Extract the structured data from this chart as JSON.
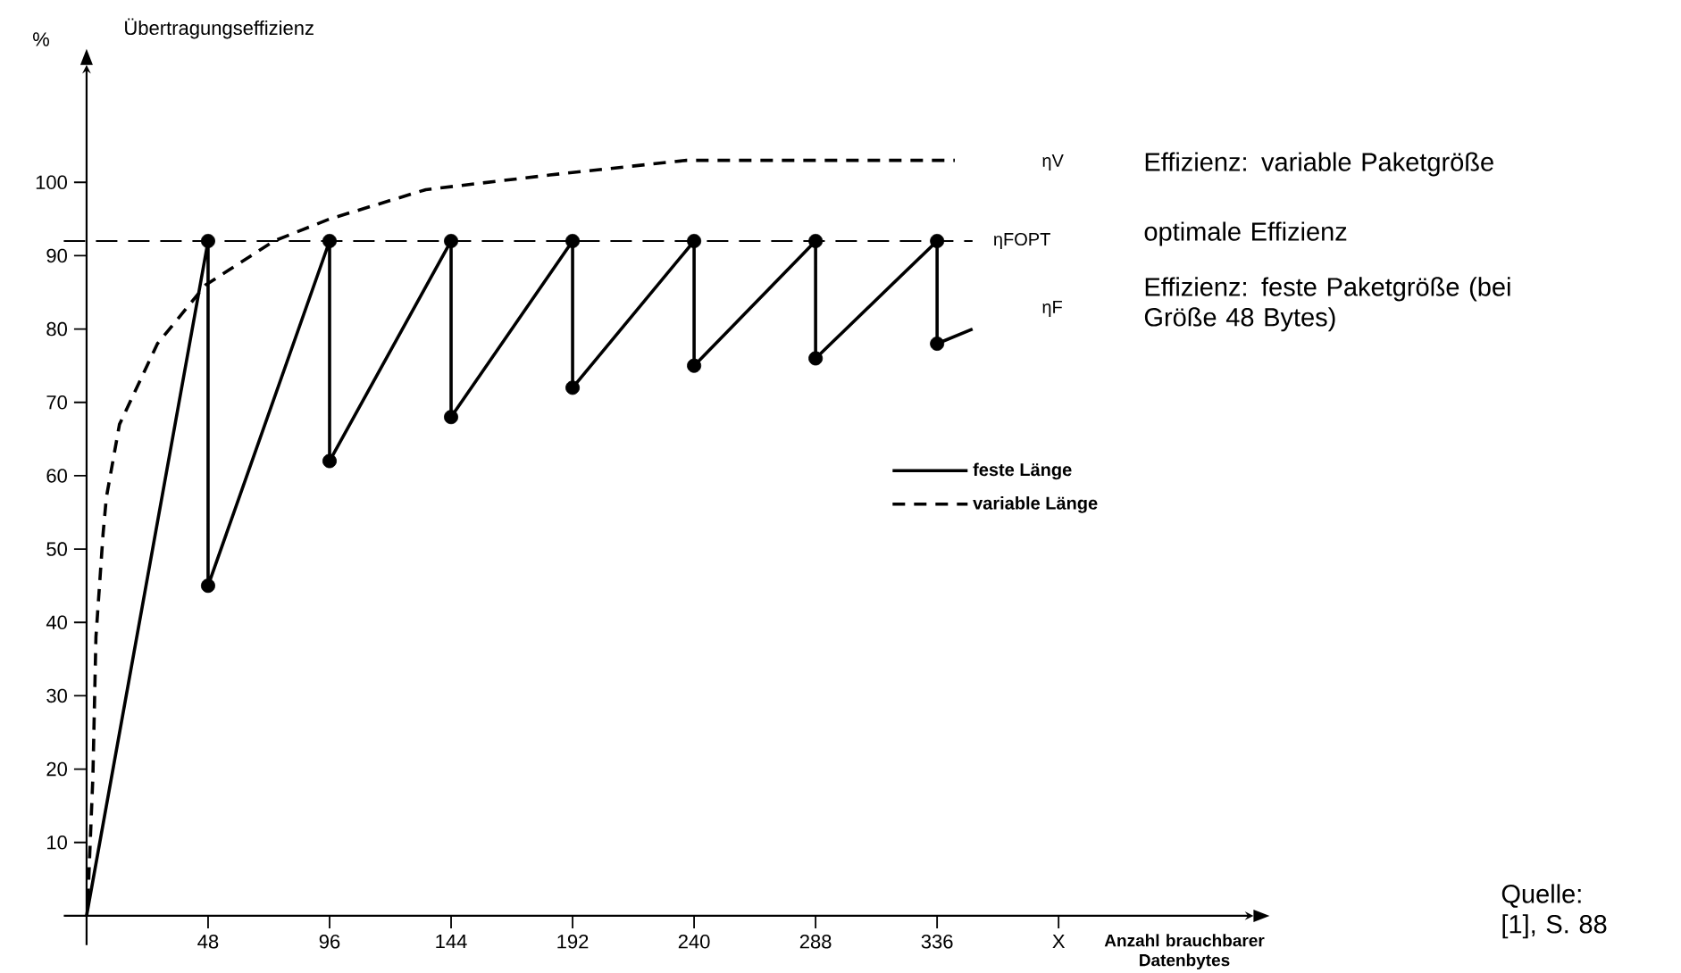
{
  "chart_data": {
    "type": "line",
    "title": "Übertragungseffizienz",
    "ylabel": "%",
    "xlabel": "Anzahl brauchbarer Datenbytes",
    "xlim": [
      -9,
      461
    ],
    "ylim": [
      -4,
      116
    ],
    "xticks": [
      48,
      96,
      144,
      192,
      240,
      288,
      336,
      {
        "value": 384,
        "label": "X"
      }
    ],
    "yticks": [
      10,
      20,
      30,
      40,
      50,
      60,
      70,
      80,
      90,
      100
    ],
    "legend": "right",
    "series": [
      {
        "name": "feste Länge",
        "color": "#000000",
        "line_style": "solid",
        "x": [
          0,
          48,
          48,
          96,
          96,
          144,
          144,
          192,
          192,
          240,
          240,
          288,
          288,
          336,
          336,
          350
        ],
        "values": [
          0,
          92,
          45,
          92,
          62,
          92,
          68,
          92,
          72,
          92,
          75,
          92,
          76,
          92,
          78,
          80
        ]
      },
      {
        "name": "variable Länge",
        "color": "#000000",
        "line_style": "dashed",
        "x": [
          0.5,
          2.5,
          3.7,
          6.5,
          7.8,
          13,
          28,
          47,
          74,
          96,
          134,
          183,
          237,
          291,
          343
        ],
        "values": [
          2,
          19,
          38,
          52,
          57,
          67,
          78,
          86,
          92,
          95,
          99,
          101,
          103,
          103,
          103
        ]
      },
      {
        "type": "scatter",
        "color": "#000000",
        "marker": "circle",
        "x": [
          48,
          48,
          96,
          96,
          144,
          144,
          192,
          192,
          240,
          240,
          288,
          288,
          336,
          336
        ],
        "values": [
          92,
          45,
          92,
          62,
          92,
          68,
          92,
          72,
          92,
          75,
          92,
          76,
          92,
          78
        ]
      }
    ],
    "ref_lines": [
      {
        "axis": "y",
        "value": 92,
        "label": "ηFOPT",
        "line_style": "dashed",
        "color": "#000000"
      }
    ],
    "annotations": [
      "ηV",
      "ηF",
      "Effizienz: variable Paketgröße",
      "optimale Effizienz",
      "Effizienz: feste Paketgröße (bei Größe 48 Bytes)",
      "Quelle: [1], S. 88"
    ]
  }
}
